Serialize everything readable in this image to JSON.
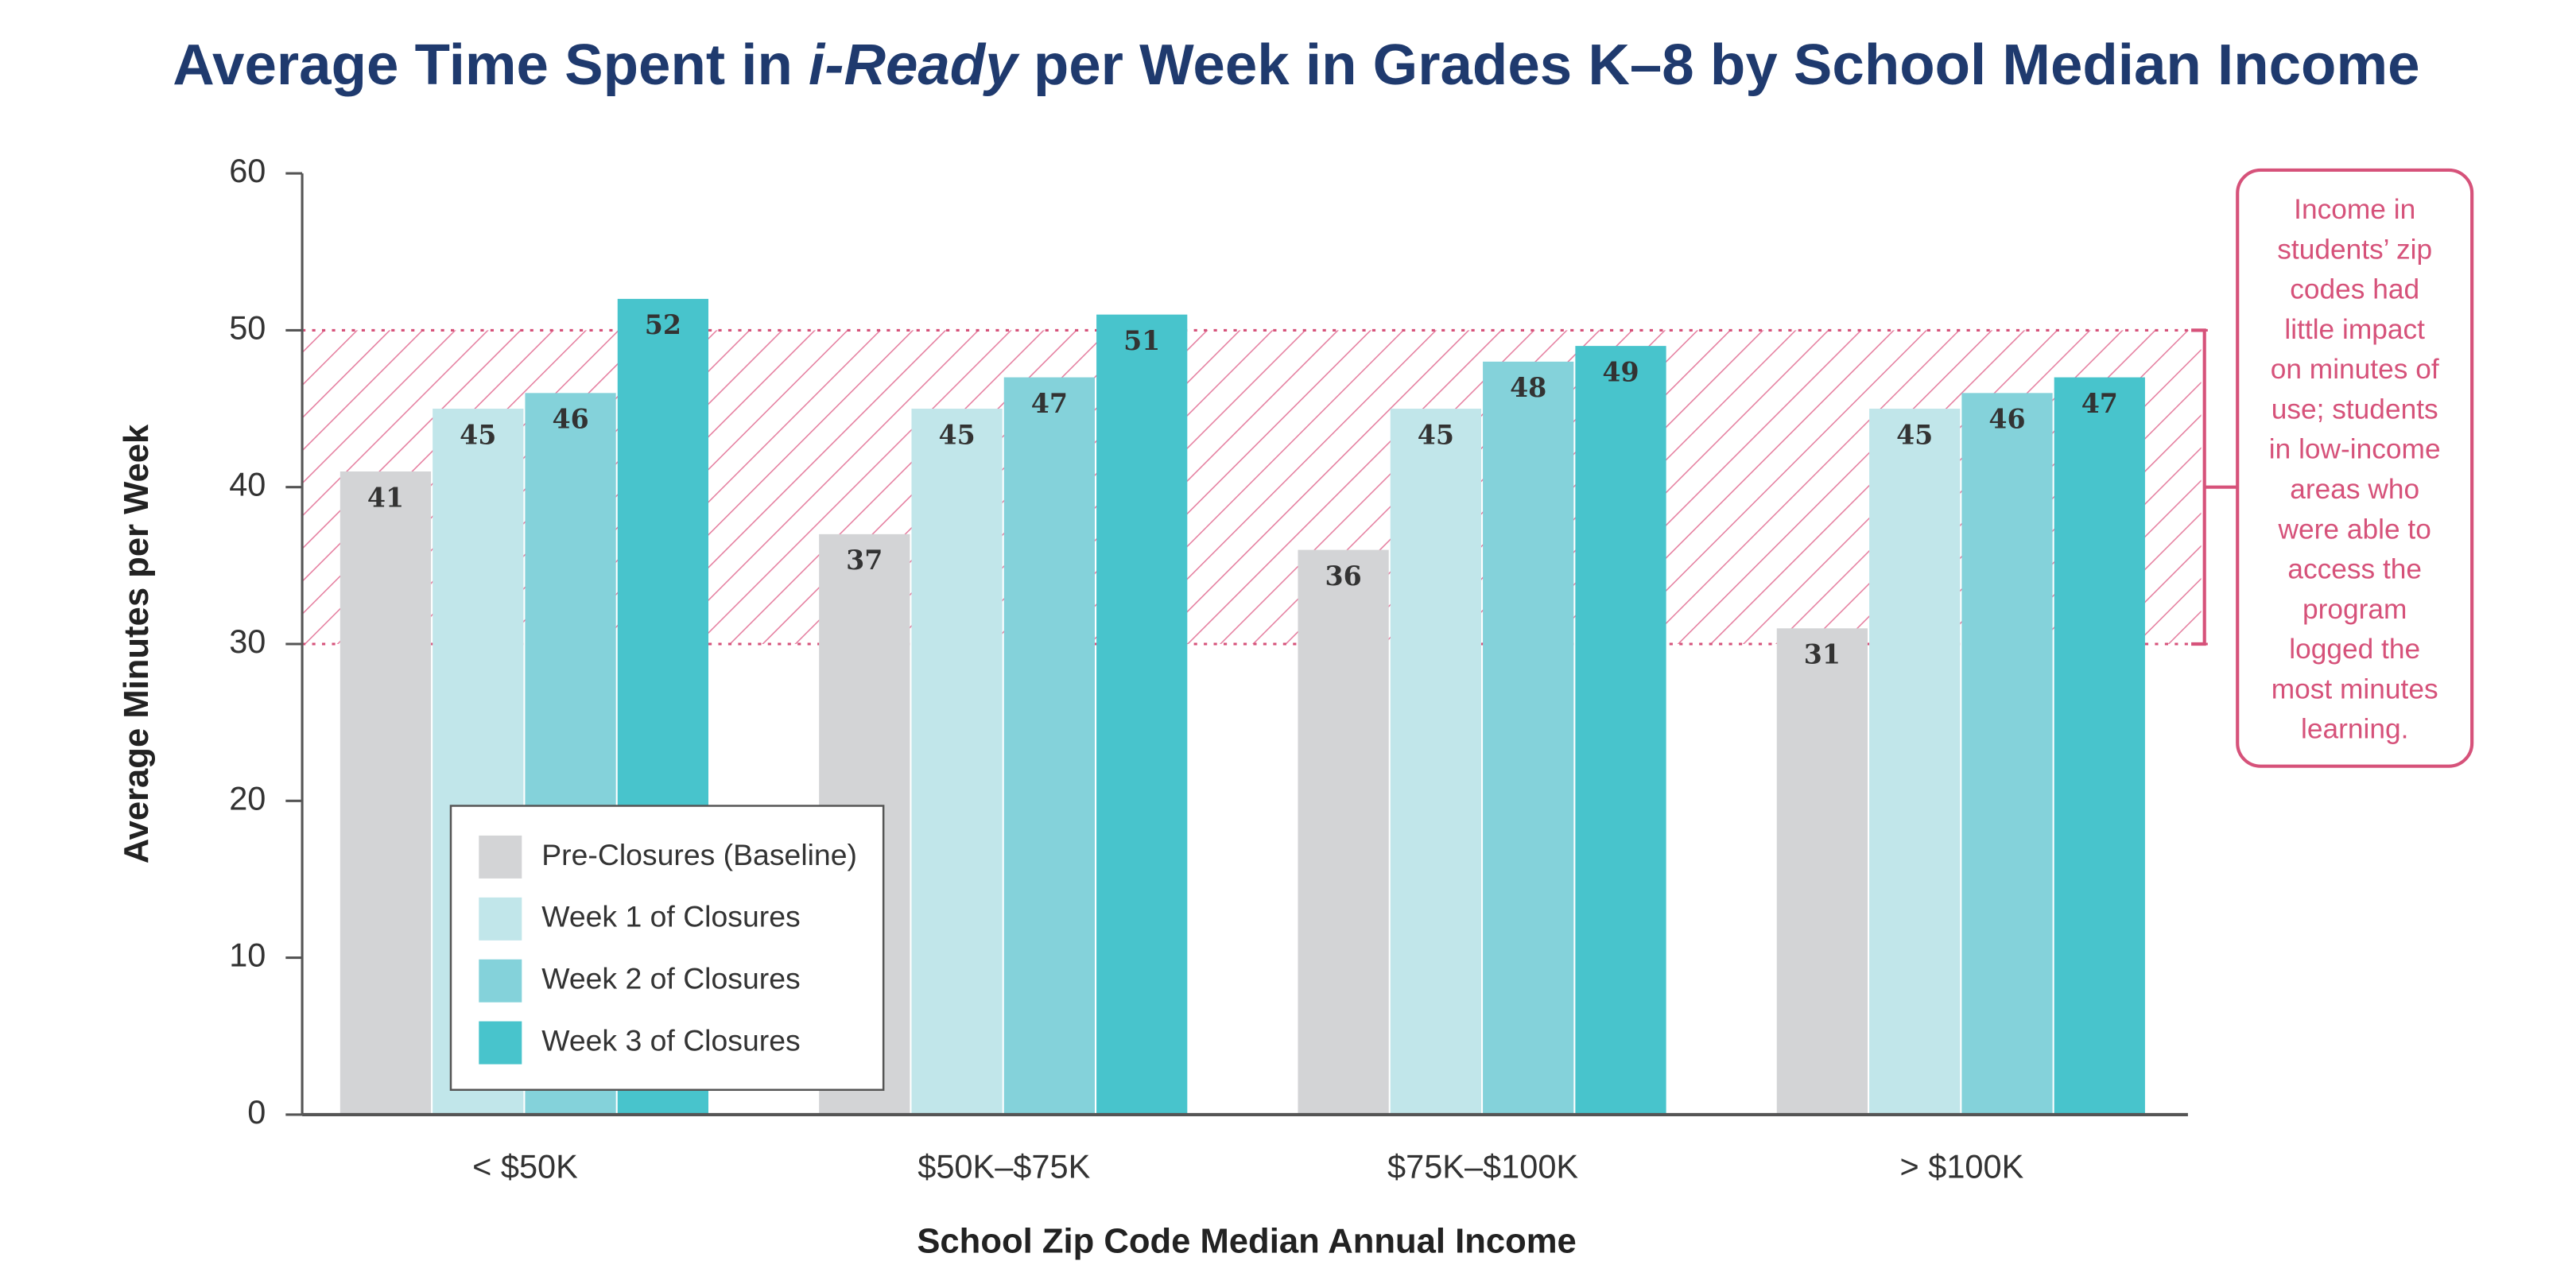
{
  "chart_data": {
    "type": "bar",
    "title": [
      "Average Time Spent in ",
      "i-Ready",
      " per Week in Grades K–8 by School Median Income"
    ],
    "x_label": "School Zip Code Median Annual Income",
    "y_label": "Average Minutes per Week",
    "categories": [
      "< $50K",
      "$50K–$75K",
      "$75K–$100K",
      "> $100K"
    ],
    "series": [
      {
        "name": "Pre-Closures (Baseline)",
        "color": "#d3d4d6",
        "values": [
          41,
          37,
          36,
          31
        ]
      },
      {
        "name": "Week 1 of Closures",
        "color": "#c1e6ea",
        "values": [
          45,
          45,
          45,
          45
        ]
      },
      {
        "name": "Week 2 of Closures",
        "color": "#84d2da",
        "values": [
          46,
          47,
          48,
          46
        ]
      },
      {
        "name": "Week 3 of Closures",
        "color": "#48c4cc",
        "values": [
          52,
          51,
          49,
          47
        ]
      }
    ],
    "ylim": [
      0,
      60
    ],
    "yticks": [
      0,
      10,
      20,
      30,
      40,
      50,
      60
    ],
    "highlight_range": [
      30,
      50
    ],
    "annotation": [
      "Income in",
      "students’ zip",
      "codes had",
      "little impact",
      "on minutes of",
      "use; students",
      "in low-income",
      "areas who",
      "were able to",
      "access the",
      "program",
      "logged the",
      "most minutes",
      "learning."
    ]
  }
}
